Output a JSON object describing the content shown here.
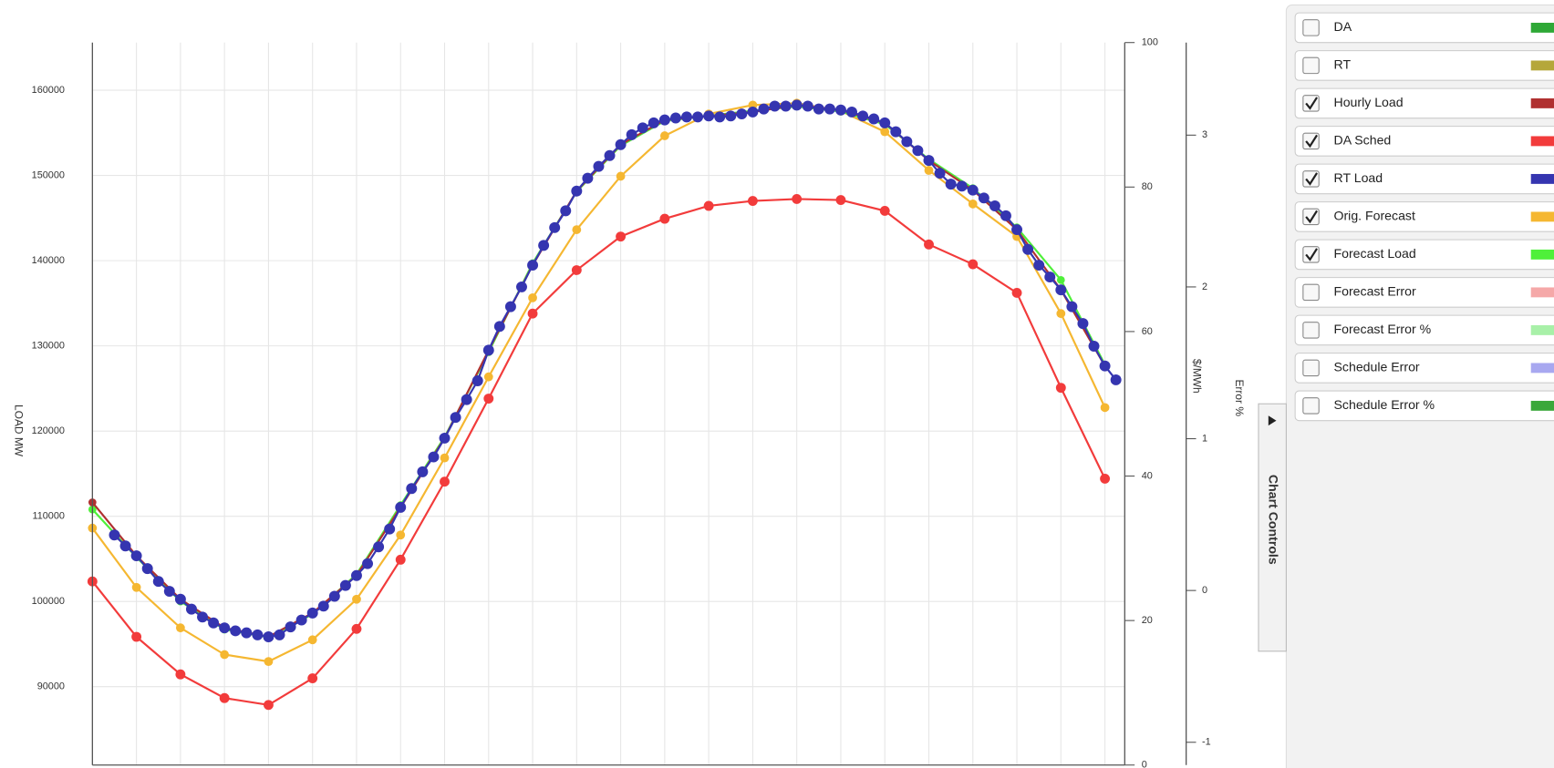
{
  "chart_data": {
    "type": "line",
    "y_label": "LOAD MW",
    "y2_label": "$/MWh",
    "y3_label": "Error %",
    "panel_tab": "Chart Controls",
    "grid": true,
    "x": [
      0,
      1,
      2,
      3,
      4,
      5,
      6,
      7,
      8,
      9,
      10,
      11,
      12,
      13,
      14,
      15,
      16,
      17,
      18,
      19,
      20,
      21,
      22,
      23
    ],
    "xlim": [
      0,
      23.45
    ],
    "xticks": [
      0,
      1,
      2,
      3,
      4,
      5,
      6,
      7,
      8,
      9,
      10,
      11,
      12,
      13,
      14,
      15,
      16,
      17,
      18,
      19,
      20,
      21,
      22,
      23
    ],
    "ylim": [
      80800,
      165600
    ],
    "yticks": [
      90000,
      100000,
      110000,
      120000,
      130000,
      140000,
      150000,
      160000
    ],
    "y2lim": [
      0,
      100
    ],
    "y2ticks": [
      0,
      20,
      40,
      60,
      80,
      100
    ],
    "y3lim": [
      -1.15,
      3.61
    ],
    "y3ticks": [
      -1,
      0,
      1,
      2,
      3
    ],
    "series": [
      {
        "name": "DA",
        "color": "#2ea836",
        "checked": false
      },
      {
        "name": "RT",
        "color": "#b5a73a",
        "checked": false
      },
      {
        "name": "Hourly Load",
        "color": "#b03030",
        "checked": true,
        "values": [
          111630,
          105360,
          100260,
          96900,
          95850,
          98640,
          103040,
          111050,
          119170,
          129490,
          139470,
          148170,
          153620,
          156520,
          156980,
          157450,
          158260,
          157680,
          156170,
          151760,
          148280,
          143640,
          136570,
          127640
        ]
      },
      {
        "name": "DA Sched",
        "color": "#f23b3b",
        "checked": true,
        "values": [
          102350,
          95850,
          91440,
          88660,
          87850,
          90980,
          96780,
          104900,
          114060,
          123810,
          133790,
          138890,
          142830,
          144920,
          146430,
          147010,
          147240,
          147120,
          145850,
          141900,
          139580,
          136220,
          125080,
          114410
        ]
      },
      {
        "name": "RT Load",
        "color": "#3535b0",
        "checked": true,
        "x": [
          0.5,
          0.75,
          1,
          1.25,
          1.5,
          1.75,
          2,
          2.25,
          2.5,
          2.75,
          3,
          3.25,
          3.5,
          3.75,
          4,
          4.25,
          4.5,
          4.75,
          5,
          5.25,
          5.5,
          5.75,
          6,
          6.25,
          6.5,
          6.75,
          7,
          7.25,
          7.5,
          7.75,
          8,
          8.25,
          8.5,
          8.75,
          9,
          9.25,
          9.5,
          9.75,
          10,
          10.25,
          10.5,
          10.75,
          11,
          11.25,
          11.5,
          11.75,
          12,
          12.25,
          12.5,
          12.75,
          13,
          13.25,
          13.5,
          13.75,
          14,
          14.25,
          14.5,
          14.75,
          15,
          15.25,
          15.5,
          15.75,
          16,
          16.25,
          16.5,
          16.75,
          17,
          17.25,
          17.5,
          17.75,
          18,
          18.25,
          18.5,
          18.75,
          19,
          19.25,
          19.5,
          19.75,
          20,
          20.25,
          20.5,
          20.75,
          21,
          21.25,
          21.5,
          21.75,
          22,
          22.25,
          22.5,
          22.75,
          23,
          23.25
        ],
        "values": [
          107800,
          106520,
          105360,
          103860,
          102350,
          101190,
          100260,
          99100,
          98170,
          97480,
          96900,
          96550,
          96320,
          96080,
          95850,
          96080,
          97010,
          97820,
          98640,
          99450,
          100610,
          101880,
          103040,
          104440,
          106410,
          108500,
          111050,
          113250,
          115220,
          116960,
          119170,
          121600,
          123690,
          125900,
          129490,
          132280,
          134600,
          136920,
          139470,
          141790,
          143880,
          145850,
          148170,
          149680,
          151070,
          152340,
          153620,
          154780,
          155590,
          156170,
          156520,
          156750,
          156870,
          156870,
          156980,
          156870,
          156980,
          157220,
          157450,
          157800,
          158140,
          158140,
          158260,
          158140,
          157800,
          157800,
          157680,
          157450,
          156980,
          156640,
          156170,
          155130,
          153970,
          152920,
          151760,
          150260,
          148980,
          148750,
          148280,
          147360,
          146430,
          145270,
          143640,
          141320,
          139470,
          138080,
          136570,
          134600,
          132620,
          129960,
          127640,
          126010
        ]
      },
      {
        "name": "Orig. Forecast",
        "color": "#f5b731",
        "checked": true,
        "values": [
          108610,
          101650,
          96900,
          93760,
          92950,
          95500,
          100260,
          107800,
          116850,
          126360,
          135640,
          143640,
          149910,
          154660,
          157220,
          158260,
          158490,
          157560,
          155130,
          150600,
          146660,
          142830,
          133790,
          122760
        ]
      },
      {
        "name": "Forecast Load",
        "color": "#4ff03a",
        "checked": true,
        "values": [
          110800,
          105200,
          100000,
          96700,
          95800,
          98500,
          103200,
          111300,
          119300,
          129260,
          139700,
          148100,
          153500,
          156400,
          157000,
          157600,
          158100,
          157500,
          156000,
          151900,
          148500,
          143900,
          137730,
          127800
        ]
      },
      {
        "name": "Forecast Error",
        "color": "#f5a8a8",
        "checked": false
      },
      {
        "name": "Forecast Error %",
        "color": "#a8f0a8",
        "checked": false
      },
      {
        "name": "Schedule Error",
        "color": "#a8a8f0",
        "checked": false
      },
      {
        "name": "Schedule Error %",
        "color": "#3aa83a",
        "checked": false
      }
    ]
  }
}
